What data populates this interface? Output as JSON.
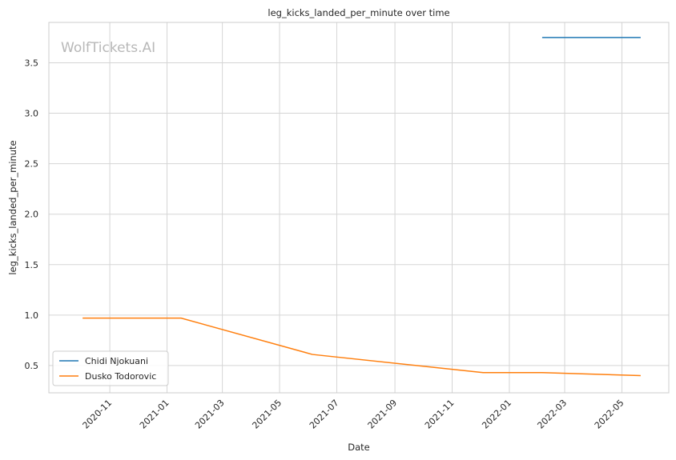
{
  "chart_data": {
    "type": "line",
    "title": "leg_kicks_landed_per_minute over time",
    "xlabel": "Date",
    "ylabel": "leg_kicks_landed_per_minute",
    "watermark": "WolfTickets.AI",
    "x_axis_kind": "date",
    "xlim": [
      "2020-08-28",
      "2022-06-20"
    ],
    "ylim": [
      0.23,
      3.9
    ],
    "x_ticks": [
      "2020-11",
      "2021-01",
      "2021-03",
      "2021-05",
      "2021-07",
      "2021-09",
      "2021-11",
      "2022-01",
      "2022-03",
      "2022-05"
    ],
    "y_ticks": [
      "0.5",
      "1.0",
      "1.5",
      "2.0",
      "2.5",
      "3.0",
      "3.5"
    ],
    "grid": true,
    "legend_position": "lower-left",
    "series": [
      {
        "name": "Chidi Njokuani",
        "color": "#1f77b4",
        "points": [
          {
            "x": "2022-02-05",
            "y": 3.75
          },
          {
            "x": "2022-05-21",
            "y": 3.75
          }
        ]
      },
      {
        "name": "Dusko Todorovic",
        "color": "#ff7f0e",
        "points": [
          {
            "x": "2020-10-03",
            "y": 0.97
          },
          {
            "x": "2021-01-16",
            "y": 0.97
          },
          {
            "x": "2021-06-05",
            "y": 0.61
          },
          {
            "x": "2021-12-04",
            "y": 0.43
          },
          {
            "x": "2022-02-05",
            "y": 0.43
          },
          {
            "x": "2022-05-21",
            "y": 0.4
          }
        ]
      }
    ]
  }
}
